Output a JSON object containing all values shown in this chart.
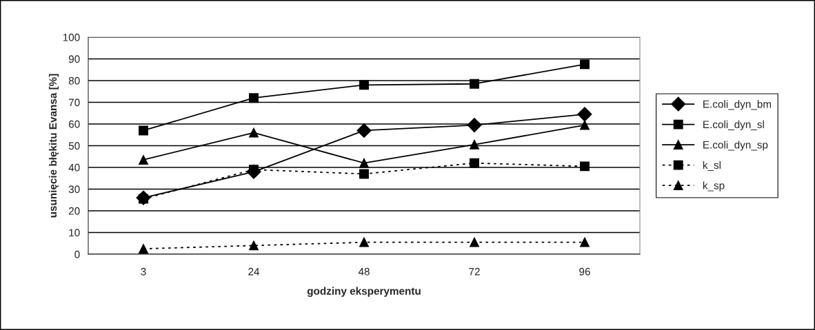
{
  "chart_data": {
    "type": "line",
    "xlabel": "godziny eksperymentu",
    "ylabel": "usunięcie błękitu Evansa [%]",
    "categories": [
      "3",
      "24",
      "48",
      "72",
      "96"
    ],
    "ylim": [
      0,
      100
    ],
    "yticks": [
      0,
      10,
      20,
      30,
      40,
      50,
      60,
      70,
      80,
      90,
      100
    ],
    "grid": "y",
    "legend": "right",
    "series": [
      {
        "name": "E.coli_dyn_bm",
        "color": "#000000",
        "marker": "diamond",
        "line_style": "solid",
        "values": [
          26,
          38,
          57,
          59.5,
          64.5
        ]
      },
      {
        "name": "E.coli_dyn_sl",
        "color": "#000000",
        "marker": "square",
        "line_style": "solid",
        "values": [
          57,
          72,
          78,
          78.5,
          87.5
        ]
      },
      {
        "name": "E.coli_dyn_sp",
        "color": "#000000",
        "marker": "triangle",
        "line_style": "solid",
        "values": [
          43.5,
          56,
          42,
          50.5,
          59.5
        ]
      },
      {
        "name": "k_sl",
        "color": "#000000",
        "marker": "square",
        "line_style": "dotted",
        "values": [
          25.5,
          39,
          37,
          42,
          40.5
        ]
      },
      {
        "name": "k_sp",
        "color": "#000000",
        "marker": "triangle",
        "line_style": "dotted",
        "values": [
          2.5,
          4,
          5.5,
          5.5,
          5.5
        ]
      }
    ]
  }
}
